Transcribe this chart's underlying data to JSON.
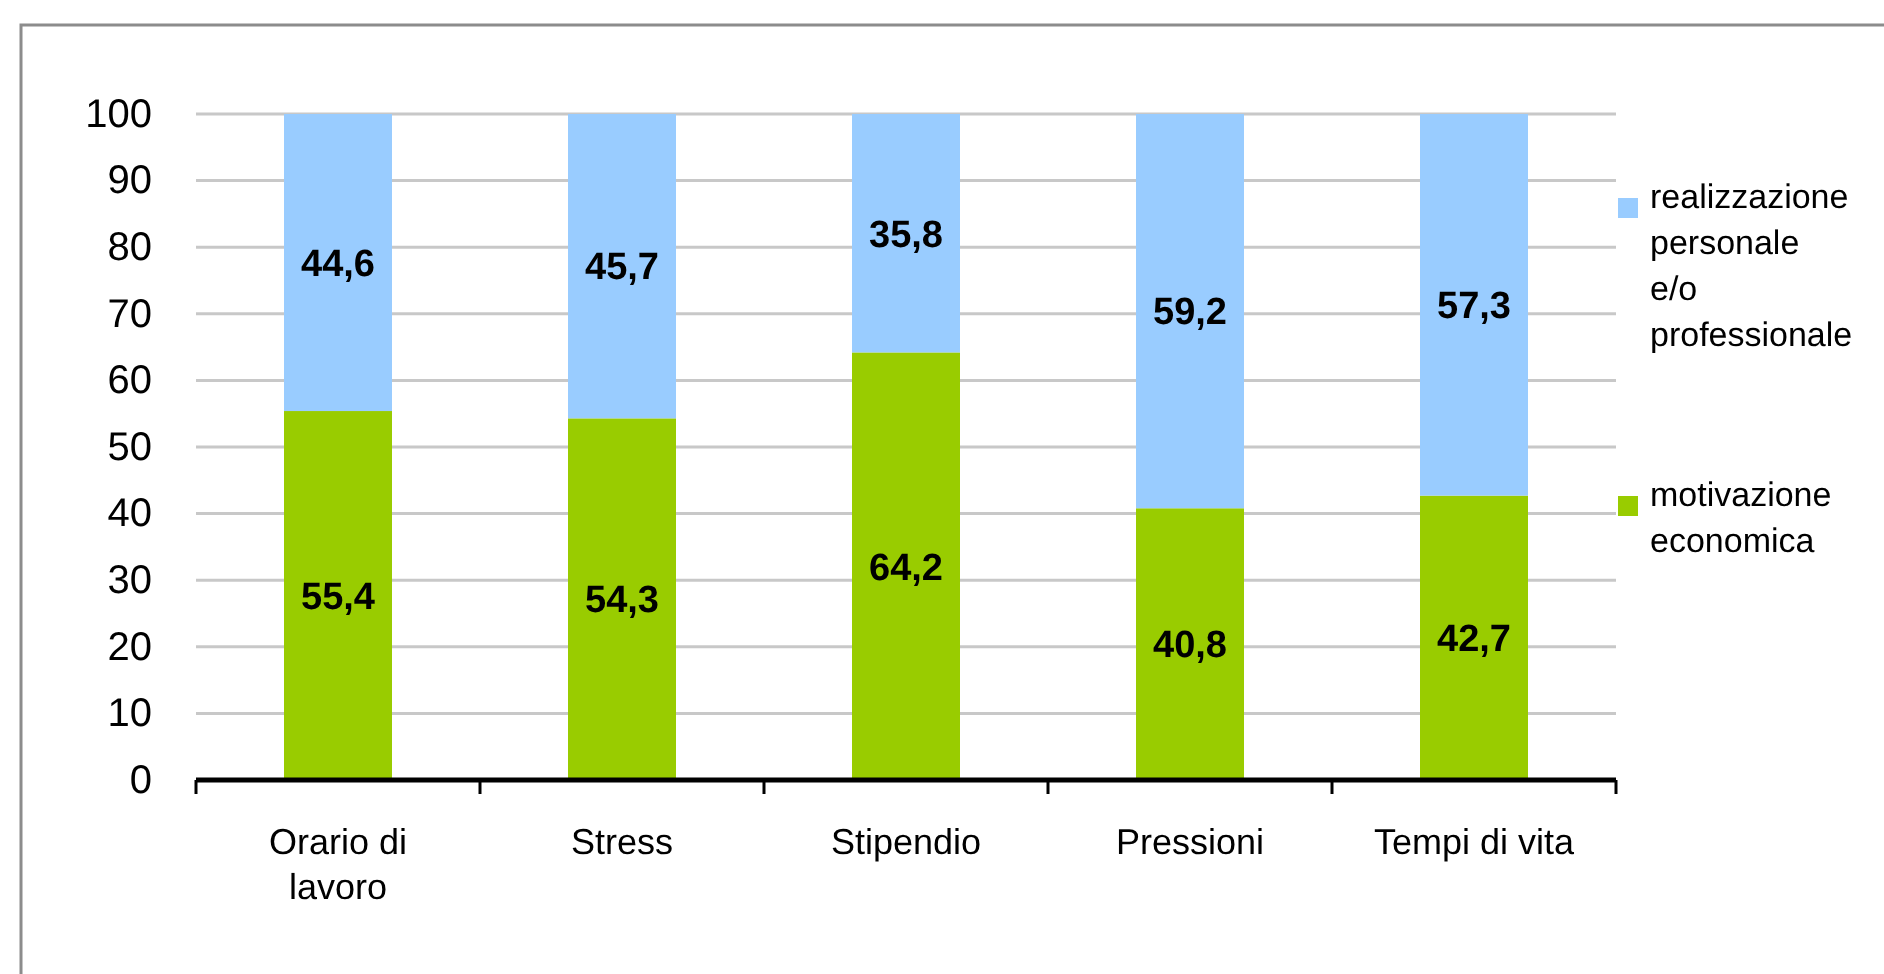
{
  "chart_data": {
    "type": "bar",
    "stacked": true,
    "categories": [
      "Orario di lavoro",
      "Stress",
      "Stipendio",
      "Pressioni",
      "Tempi di vita"
    ],
    "series": [
      {
        "name": "motivazione economica",
        "color": "#99cc00",
        "values": [
          55.4,
          54.3,
          64.2,
          40.8,
          42.7
        ],
        "value_labels": [
          "55,4",
          "54,3",
          "64,2",
          "40,8",
          "42,7"
        ]
      },
      {
        "name": "realizzazione personale e/o professionale",
        "color": "#99ccff",
        "values": [
          44.6,
          45.7,
          35.8,
          59.2,
          57.3
        ],
        "value_labels": [
          "44,6",
          "45,7",
          "35,8",
          "59,2",
          "57,3"
        ]
      }
    ],
    "ylim": [
      0,
      100
    ],
    "yticks": [
      0,
      10,
      20,
      30,
      40,
      50,
      60,
      70,
      80,
      90,
      100
    ],
    "grid": true,
    "legend": "right"
  }
}
